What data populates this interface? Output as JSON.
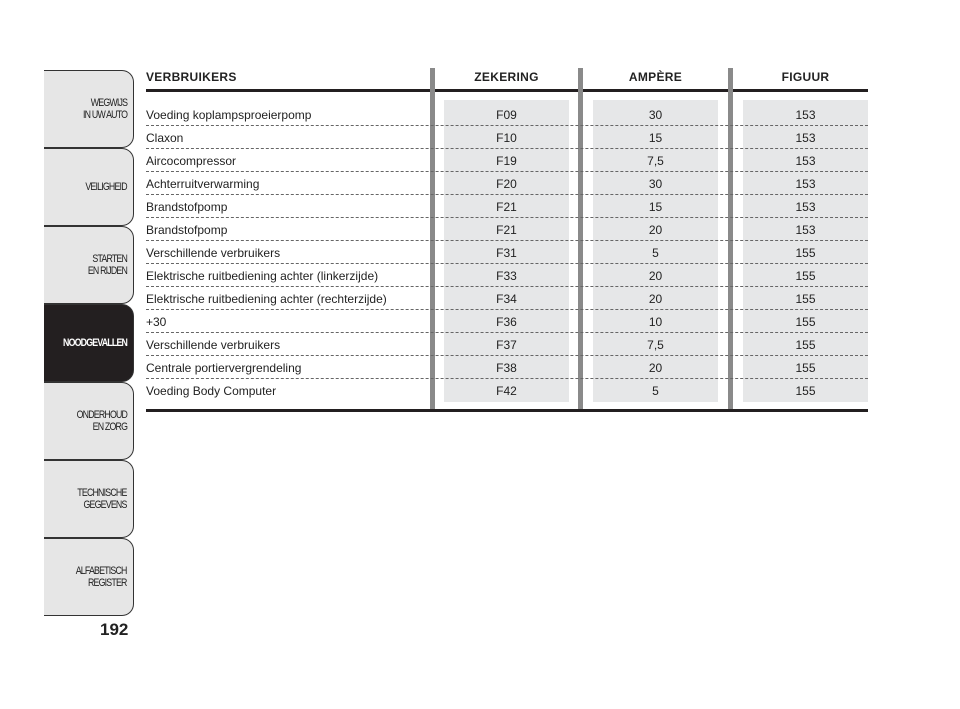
{
  "sidebar": {
    "tabs": [
      {
        "label": "WEGWIJS\nIN UW AUTO",
        "active": false
      },
      {
        "label": "VEILIGHEID",
        "active": false
      },
      {
        "label": "STARTEN\nEN RIJDEN",
        "active": false
      },
      {
        "label": "NOODGEVALLEN",
        "active": true
      },
      {
        "label": "ONDERHOUD\nEN ZORG",
        "active": false
      },
      {
        "label": "TECHNISCHE\nGEGEVENS",
        "active": false
      },
      {
        "label": "ALFABETISCH\nREGISTER",
        "active": false
      }
    ]
  },
  "page_number": "192",
  "table": {
    "headers": [
      "VERBRUIKERS",
      "ZEKERING",
      "AMPÈRE",
      "FIGUUR"
    ],
    "rows": [
      [
        "Voeding koplampsproeierpomp",
        "F09",
        "30",
        "153"
      ],
      [
        "Claxon",
        "F10",
        "15",
        "153"
      ],
      [
        "Aircocompressor",
        "F19",
        "7,5",
        "153"
      ],
      [
        "Achterruitverwarming",
        "F20",
        "30",
        "153"
      ],
      [
        "Brandstofpomp",
        "F21",
        "15",
        "153"
      ],
      [
        "Brandstofpomp",
        "F21",
        "20",
        "153"
      ],
      [
        "Verschillende verbruikers",
        "F31",
        "5",
        "155"
      ],
      [
        "Elektrische ruitbediening achter (linkerzijde)",
        "F33",
        "20",
        "155"
      ],
      [
        "Elektrische ruitbediening achter (rechterzijde)",
        "F34",
        "20",
        "155"
      ],
      [
        "+30",
        "F36",
        "10",
        "155"
      ],
      [
        "Verschillende verbruikers",
        "F37",
        "7,5",
        "155"
      ],
      [
        "Centrale portiervergrendeling",
        "F38",
        "20",
        "155"
      ],
      [
        "Voeding Body Computer",
        "F42",
        "5",
        "155"
      ]
    ]
  },
  "colors": {
    "active_tab": "#231f20",
    "tab": "#e6e6e6",
    "cell_bg": "#e6e7e8",
    "divider": "#8a8a8a"
  }
}
